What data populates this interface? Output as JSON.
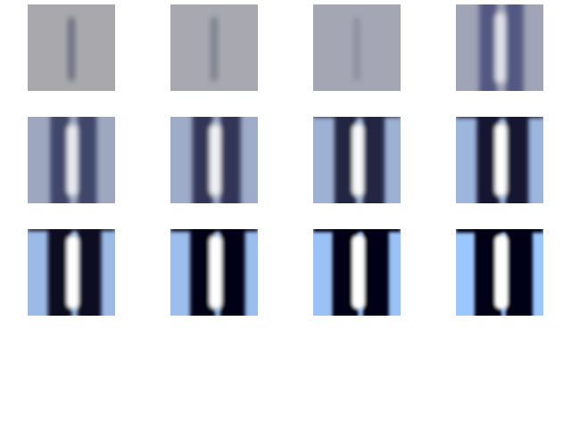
{
  "figure": {
    "rows": 3,
    "cols": 4,
    "tiles": [
      {
        "row": 0,
        "col": 0,
        "step": 0,
        "intensity": 0.0
      },
      {
        "row": 0,
        "col": 1,
        "step": 1,
        "intensity": 0.07
      },
      {
        "row": 0,
        "col": 2,
        "step": 2,
        "intensity": 0.16
      },
      {
        "row": 0,
        "col": 3,
        "step": 3,
        "intensity": 0.27
      },
      {
        "row": 1,
        "col": 0,
        "step": 4,
        "intensity": 0.38
      },
      {
        "row": 1,
        "col": 1,
        "step": 5,
        "intensity": 0.48
      },
      {
        "row": 1,
        "col": 2,
        "step": 6,
        "intensity": 0.58
      },
      {
        "row": 1,
        "col": 3,
        "step": 7,
        "intensity": 0.66
      },
      {
        "row": 2,
        "col": 0,
        "step": 8,
        "intensity": 0.75
      },
      {
        "row": 2,
        "col": 1,
        "step": 9,
        "intensity": 0.83
      },
      {
        "row": 2,
        "col": 2,
        "step": 10,
        "intensity": 0.91
      },
      {
        "row": 2,
        "col": 3,
        "step": 11,
        "intensity": 1.0
      }
    ]
  },
  "colors": {
    "background": "#ffffff",
    "gray_base": "#a9a9ad",
    "gray_stripe": "#5a5e72",
    "blue_light": "#9ac7ff",
    "blue_mid": "#0b36d6",
    "dark": "#000016",
    "white": "#ffffff"
  }
}
